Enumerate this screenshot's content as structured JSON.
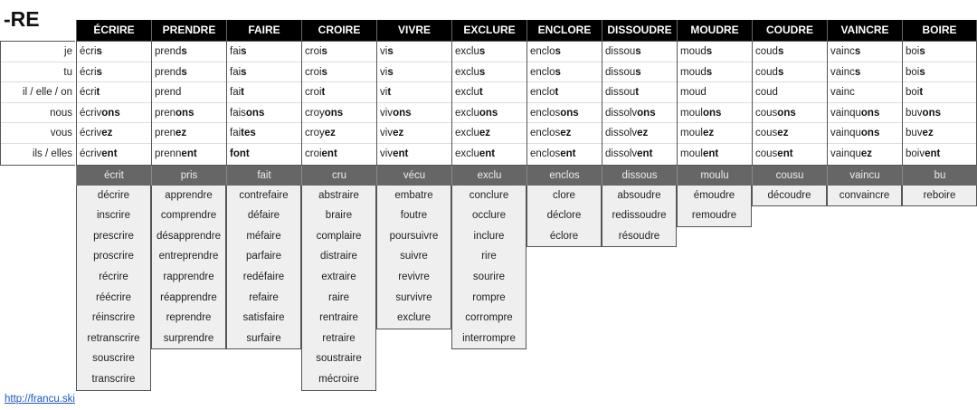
{
  "title": "-RE",
  "pronouns": [
    "je",
    "tu",
    "il / elle / on",
    "nous",
    "vous",
    "ils / elles"
  ],
  "verbs": [
    {
      "name": "ÉCRIRE",
      "forms": [
        [
          "écri",
          "s"
        ],
        [
          "écri",
          "s"
        ],
        [
          "écri",
          "t"
        ],
        [
          "écriv",
          "ons"
        ],
        [
          "écriv",
          "ez"
        ],
        [
          "écriv",
          "ent"
        ]
      ],
      "participle": "écrit",
      "related": [
        "décrire",
        "inscrire",
        "prescrire",
        "proscrire",
        "récrire",
        "réécrire",
        "réinscrire",
        "retranscrire",
        "souscrire",
        "transcrire"
      ]
    },
    {
      "name": "PRENDRE",
      "forms": [
        [
          "prend",
          "s"
        ],
        [
          "prend",
          "s"
        ],
        [
          "prend",
          ""
        ],
        [
          "pren",
          "ons"
        ],
        [
          "pren",
          "ez"
        ],
        [
          "prenn",
          "ent"
        ]
      ],
      "participle": "pris",
      "related": [
        "apprendre",
        "comprendre",
        "désapprendre",
        "entreprendre",
        "rapprendre",
        "réapprendre",
        "reprendre",
        "surprendre"
      ]
    },
    {
      "name": "FAIRE",
      "forms": [
        [
          "fai",
          "s"
        ],
        [
          "fai",
          "s"
        ],
        [
          "fai",
          "t"
        ],
        [
          "fais",
          "ons"
        ],
        [
          "fai",
          "tes"
        ],
        [
          "",
          "font"
        ]
      ],
      "participle": "fait",
      "related": [
        "contrefaire",
        "défaire",
        "méfaire",
        "parfaire",
        "redéfaire",
        "refaire",
        "satisfaire",
        "surfaire"
      ]
    },
    {
      "name": "CROIRE",
      "forms": [
        [
          "croi",
          "s"
        ],
        [
          "croi",
          "s"
        ],
        [
          "croi",
          "t"
        ],
        [
          "croy",
          "ons"
        ],
        [
          "croy",
          "ez"
        ],
        [
          "croi",
          "ent"
        ]
      ],
      "participle": "cru",
      "related": [
        "abstraire",
        "braire",
        "complaire",
        "distraire",
        "extraire",
        "raire",
        "rentraire",
        "retraire",
        "soustraire",
        "mécroire"
      ]
    },
    {
      "name": "VIVRE",
      "forms": [
        [
          "vi",
          "s"
        ],
        [
          "vi",
          "s"
        ],
        [
          "vi",
          "t"
        ],
        [
          "viv",
          "ons"
        ],
        [
          "viv",
          "ez"
        ],
        [
          "viv",
          "ent"
        ]
      ],
      "participle": "vécu",
      "related": [
        "embatre",
        "foutre",
        "poursuivre",
        "suivre",
        "revivre",
        "survivre",
        "exclure"
      ]
    },
    {
      "name": "EXCLURE",
      "forms": [
        [
          "exclu",
          "s"
        ],
        [
          "exclu",
          "s"
        ],
        [
          "exclu",
          "t"
        ],
        [
          "exclu",
          "ons"
        ],
        [
          "exclu",
          "ez"
        ],
        [
          "exclu",
          "ent"
        ]
      ],
      "participle": "exclu",
      "related": [
        "conclure",
        "occlure",
        "inclure",
        "rire",
        "sourire",
        "rompre",
        "corrompre",
        "interrompre"
      ]
    },
    {
      "name": "ENCLORE",
      "forms": [
        [
          "enclo",
          "s"
        ],
        [
          "enclo",
          "s"
        ],
        [
          "enclo",
          "t"
        ],
        [
          "enclos",
          "ons"
        ],
        [
          "enclos",
          "ez"
        ],
        [
          "enclos",
          "ent"
        ]
      ],
      "participle": "enclos",
      "related": [
        "clore",
        "déclore",
        "éclore"
      ]
    },
    {
      "name": "DISSOUDRE",
      "forms": [
        [
          "dissou",
          "s"
        ],
        [
          "dissou",
          "s"
        ],
        [
          "dissou",
          "t"
        ],
        [
          "dissolv",
          "ons"
        ],
        [
          "dissolv",
          "ez"
        ],
        [
          "dissolv",
          "ent"
        ]
      ],
      "participle": "dissous",
      "related": [
        "absoudre",
        "redissoudre",
        "résoudre"
      ]
    },
    {
      "name": "MOUDRE",
      "forms": [
        [
          "moud",
          "s"
        ],
        [
          "moud",
          "s"
        ],
        [
          "moud",
          ""
        ],
        [
          "moul",
          "ons"
        ],
        [
          "moul",
          "ez"
        ],
        [
          "moul",
          "ent"
        ]
      ],
      "participle": "moulu",
      "related": [
        "émoudre",
        "remoudre"
      ]
    },
    {
      "name": "COUDRE",
      "forms": [
        [
          "coud",
          "s"
        ],
        [
          "coud",
          "s"
        ],
        [
          "coud",
          ""
        ],
        [
          "cous",
          "ons"
        ],
        [
          "cous",
          "ez"
        ],
        [
          "cous",
          "ent"
        ]
      ],
      "participle": "cousu",
      "related": [
        "découdre"
      ]
    },
    {
      "name": "VAINCRE",
      "forms": [
        [
          "vainc",
          "s"
        ],
        [
          "vainc",
          "s"
        ],
        [
          "vainc",
          ""
        ],
        [
          "vainqu",
          "ons"
        ],
        [
          "vainqu",
          "ons"
        ],
        [
          "vainqu",
          "ez"
        ]
      ],
      "participle": "vaincu",
      "related": [
        "convaincre"
      ]
    },
    {
      "name": "BOIRE",
      "forms": [
        [
          "boi",
          "s"
        ],
        [
          "boi",
          "s"
        ],
        [
          "boi",
          "t"
        ],
        [
          "buv",
          "ons"
        ],
        [
          "buv",
          "ez"
        ],
        [
          "boiv",
          "ent"
        ]
      ],
      "participle": "bu",
      "related": [
        "reboire"
      ]
    }
  ],
  "footer_link": "http://francu.ski"
}
